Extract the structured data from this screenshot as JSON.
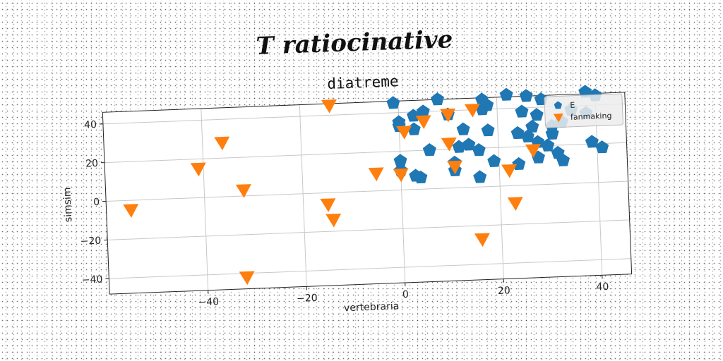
{
  "chart_data": {
    "type": "scatter",
    "suptitle": "T ratiocinative",
    "title": "diatreme",
    "xlabel": "vertebraria",
    "ylabel": "simsim",
    "xlim": [
      -60,
      46
    ],
    "ylim": [
      -48,
      46
    ],
    "xticks": [
      -40,
      -20,
      0,
      20,
      40
    ],
    "yticks": [
      -40,
      -20,
      0,
      20,
      40
    ],
    "xtick_labels": [
      "−40",
      "−20",
      "0",
      "20",
      "40"
    ],
    "ytick_labels": [
      "−40",
      "−20",
      "0",
      "20",
      "40"
    ],
    "grid": true,
    "legend": "top-right",
    "series": [
      {
        "name": "E",
        "marker": "pentagon",
        "color": "#1f77b4",
        "points": [
          [
            -1,
            45
          ],
          [
            8,
            46
          ],
          [
            17,
            45
          ],
          [
            22,
            47
          ],
          [
            26,
            46
          ],
          [
            29,
            44
          ],
          [
            38,
            47
          ],
          [
            40,
            45
          ],
          [
            0,
            35
          ],
          [
            3,
            38
          ],
          [
            5,
            40
          ],
          [
            10,
            38
          ],
          [
            17,
            40
          ],
          [
            18,
            42
          ],
          [
            25,
            38
          ],
          [
            28,
            36
          ],
          [
            38,
            36
          ],
          [
            0,
            33
          ],
          [
            3,
            31
          ],
          [
            13,
            30
          ],
          [
            18,
            29
          ],
          [
            27,
            30
          ],
          [
            31,
            30
          ],
          [
            33,
            32
          ],
          [
            35,
            38
          ],
          [
            24,
            27
          ],
          [
            26,
            25
          ],
          [
            31,
            26
          ],
          [
            6,
            20
          ],
          [
            12,
            21
          ],
          [
            14,
            22
          ],
          [
            16,
            19
          ],
          [
            28,
            22
          ],
          [
            30,
            20
          ],
          [
            39,
            21
          ],
          [
            41,
            18
          ],
          [
            0,
            15
          ],
          [
            11,
            13
          ],
          [
            19,
            13
          ],
          [
            24,
            11
          ],
          [
            28,
            14
          ],
          [
            32,
            16
          ],
          [
            33,
            12
          ],
          [
            0,
            10
          ],
          [
            3,
            7
          ],
          [
            4,
            6
          ],
          [
            11,
            9
          ],
          [
            16,
            5
          ]
        ]
      },
      {
        "name": "fanmaking",
        "marker": "triangle-down",
        "color": "#ff7f0e",
        "points": [
          [
            -14,
            45
          ],
          [
            -36,
            28
          ],
          [
            -41,
            15
          ],
          [
            -32,
            3
          ],
          [
            -55,
            -5
          ],
          [
            -15,
            -6
          ],
          [
            -14,
            -14
          ],
          [
            -32,
            -42
          ],
          [
            1,
            30
          ],
          [
            5,
            35
          ],
          [
            10,
            38
          ],
          [
            15,
            40
          ],
          [
            10,
            23
          ],
          [
            27,
            18
          ],
          [
            -5,
            9
          ],
          [
            0,
            8
          ],
          [
            11,
            11
          ],
          [
            22,
            8
          ],
          [
            23,
            -9
          ],
          [
            16,
            -27
          ]
        ]
      }
    ]
  }
}
